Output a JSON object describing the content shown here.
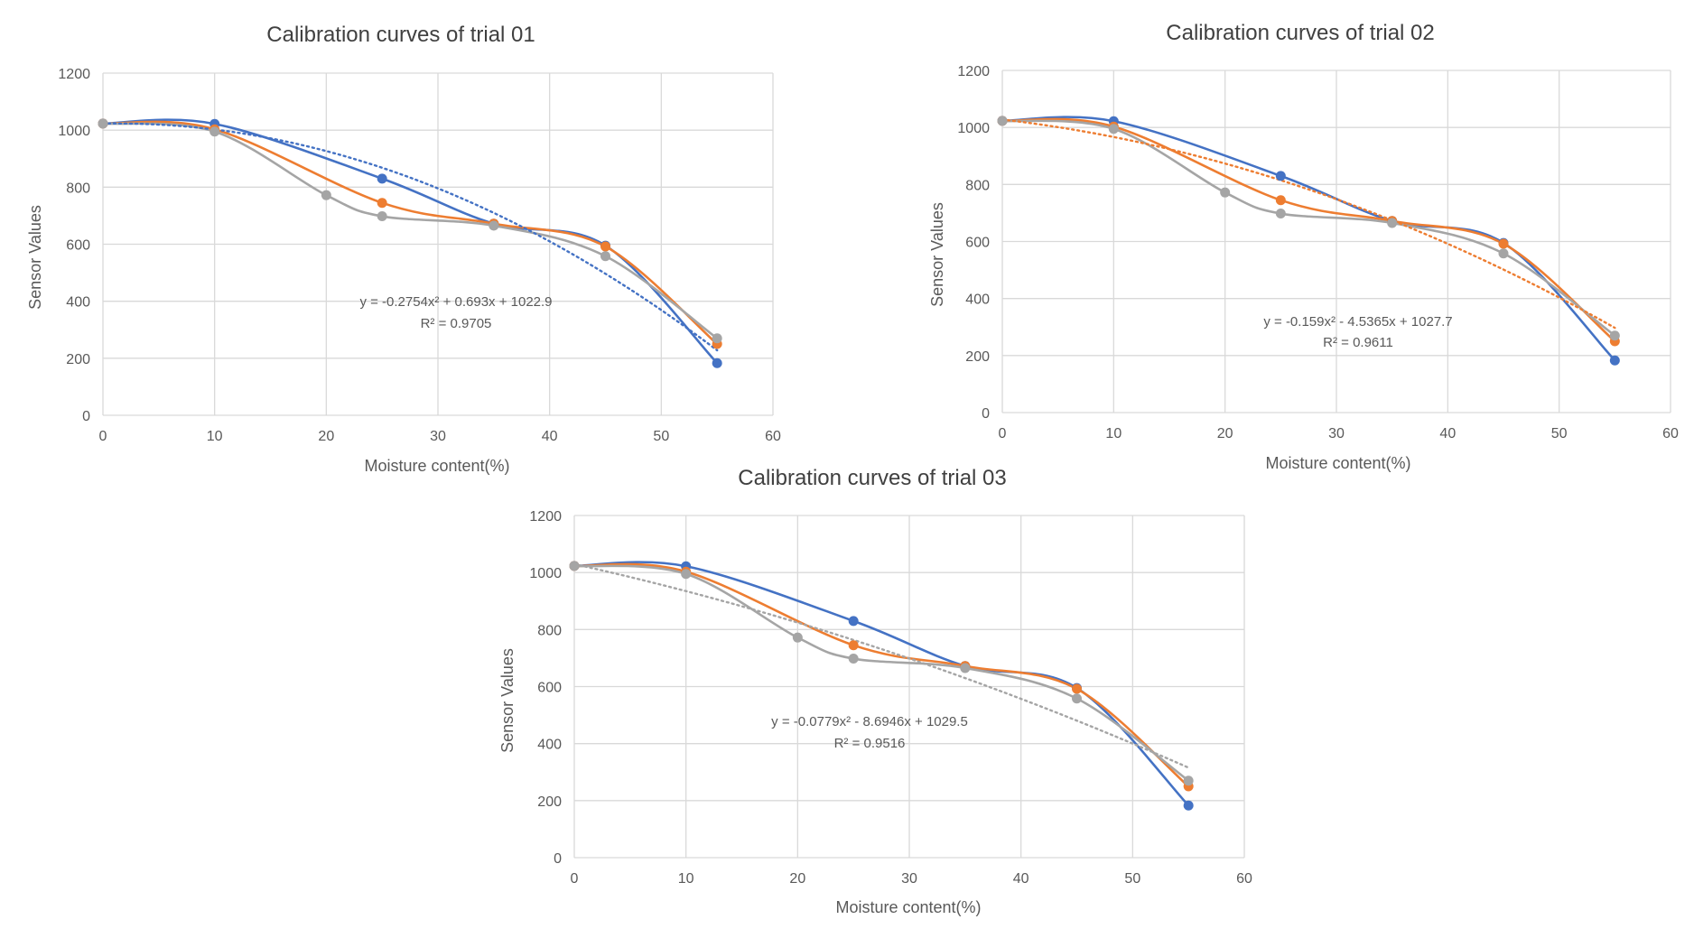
{
  "colors": {
    "series1": "#4472c4",
    "series2": "#ed7d31",
    "series3": "#a5a5a5",
    "grid": "#d9d9d9",
    "text": "#595959",
    "title": "#404040"
  },
  "chart_data": [
    {
      "type": "line",
      "title": "Calibration curves of trial 01",
      "xlabel": "Moisture content(%)",
      "ylabel": "Sensor Values",
      "xlim": [
        0,
        60
      ],
      "ylim": [
        0,
        1200
      ],
      "xticks": [
        "0",
        "10",
        "20",
        "30",
        "40",
        "50",
        "60"
      ],
      "yticks": [
        "0",
        "200",
        "400",
        "600",
        "800",
        "1000",
        "1200"
      ],
      "grid": true,
      "series": [
        {
          "x": [
            0,
            10,
            25,
            35,
            45,
            55
          ],
          "y": [
            1023,
            1022,
            830,
            672,
            595,
            183
          ]
        },
        {
          "x": [
            0,
            10,
            25,
            35,
            45,
            55
          ],
          "y": [
            1023,
            1003,
            745,
            672,
            592,
            250
          ]
        },
        {
          "x": [
            0,
            10,
            20,
            25,
            35,
            45,
            55
          ],
          "y": [
            1023,
            995,
            772,
            698,
            665,
            558,
            270
          ]
        }
      ],
      "trendline": {
        "series": 0,
        "a": -0.2754,
        "b": 0.693,
        "c": 1022.9,
        "x_range": [
          0,
          55
        ]
      },
      "annotation": {
        "equation": "y = -0.2754x² + 0.693x + 1022.9",
        "r2": "R² = 0.9705"
      }
    },
    {
      "type": "line",
      "title": "Calibration curves of trial 02",
      "xlabel": "Moisture content(%)",
      "ylabel": "Sensor Values",
      "xlim": [
        0,
        60
      ],
      "ylim": [
        0,
        1200
      ],
      "xticks": [
        "0",
        "10",
        "20",
        "30",
        "40",
        "50",
        "60"
      ],
      "yticks": [
        "0",
        "200",
        "400",
        "600",
        "800",
        "1000",
        "1200"
      ],
      "grid": true,
      "series": [
        {
          "x": [
            0,
            10,
            25,
            35,
            45,
            55
          ],
          "y": [
            1023,
            1022,
            830,
            672,
            595,
            183
          ]
        },
        {
          "x": [
            0,
            10,
            25,
            35,
            45,
            55
          ],
          "y": [
            1023,
            1003,
            745,
            672,
            592,
            250
          ]
        },
        {
          "x": [
            0,
            10,
            20,
            25,
            35,
            45,
            55
          ],
          "y": [
            1023,
            995,
            772,
            698,
            665,
            558,
            270
          ]
        }
      ],
      "trendline": {
        "series": 1,
        "a": -0.159,
        "b": -4.5365,
        "c": 1027.7,
        "x_range": [
          0,
          55
        ]
      },
      "annotation": {
        "equation": "y = -0.159x² - 4.5365x + 1027.7",
        "r2": "R² = 0.9611"
      }
    },
    {
      "type": "line",
      "title": "Calibration curves of trial 03",
      "xlabel": "Moisture content(%)",
      "ylabel": "Sensor Values",
      "xlim": [
        0,
        60
      ],
      "ylim": [
        0,
        1200
      ],
      "xticks": [
        "0",
        "10",
        "20",
        "30",
        "40",
        "50",
        "60"
      ],
      "yticks": [
        "0",
        "200",
        "400",
        "600",
        "800",
        "1000",
        "1200"
      ],
      "grid": true,
      "series": [
        {
          "x": [
            0,
            10,
            25,
            35,
            45,
            55
          ],
          "y": [
            1023,
            1022,
            830,
            672,
            595,
            183
          ]
        },
        {
          "x": [
            0,
            10,
            25,
            35,
            45,
            55
          ],
          "y": [
            1023,
            1003,
            745,
            672,
            592,
            250
          ]
        },
        {
          "x": [
            0,
            10,
            20,
            25,
            35,
            45,
            55
          ],
          "y": [
            1023,
            995,
            772,
            698,
            665,
            558,
            270
          ]
        }
      ],
      "trendline": {
        "series": 2,
        "a": -0.0779,
        "b": -8.6946,
        "c": 1029.5,
        "x_range": [
          0,
          55
        ]
      },
      "annotation": {
        "equation": "y = -0.0779x² - 8.6946x + 1029.5",
        "r2": "R² = 0.9516"
      }
    }
  ]
}
